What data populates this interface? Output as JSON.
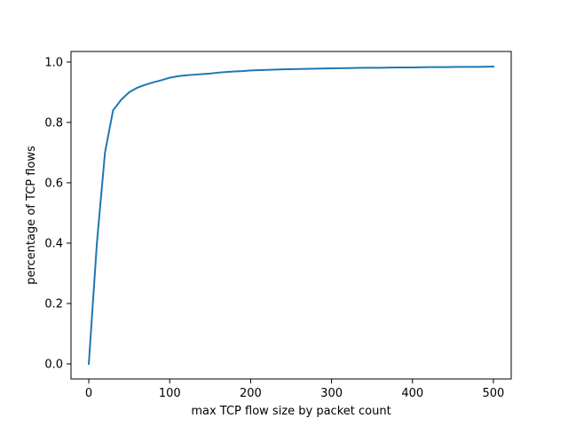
{
  "chart_data": {
    "type": "line",
    "title": "",
    "xlabel": "max TCP flow size by packet count",
    "ylabel": "percentage of TCP flows",
    "xlim": [
      -22,
      522
    ],
    "ylim": [
      -0.05,
      1.035
    ],
    "xticks": [
      0,
      100,
      200,
      300,
      400,
      500
    ],
    "yticks": [
      0.0,
      0.2,
      0.4,
      0.6,
      0.8,
      1.0
    ],
    "xtick_labels": [
      "0",
      "100",
      "200",
      "300",
      "400",
      "500"
    ],
    "ytick_labels": [
      "0.0",
      "0.2",
      "0.4",
      "0.6",
      "0.8",
      "1.0"
    ],
    "grid": false,
    "series": [
      {
        "name": "",
        "color": "#1f77b4",
        "x": [
          0,
          10,
          20,
          30,
          40,
          50,
          60,
          70,
          80,
          90,
          100,
          110,
          120,
          130,
          140,
          150,
          160,
          170,
          180,
          190,
          200,
          220,
          240,
          260,
          280,
          300,
          320,
          340,
          360,
          380,
          400,
          420,
          440,
          460,
          480,
          500
        ],
        "y": [
          0.0,
          0.4,
          0.7,
          0.84,
          0.875,
          0.9,
          0.915,
          0.925,
          0.933,
          0.94,
          0.948,
          0.953,
          0.956,
          0.958,
          0.96,
          0.962,
          0.965,
          0.967,
          0.969,
          0.97,
          0.972,
          0.974,
          0.976,
          0.977,
          0.978,
          0.979,
          0.98,
          0.981,
          0.981,
          0.982,
          0.982,
          0.983,
          0.983,
          0.984,
          0.984,
          0.985
        ]
      }
    ]
  }
}
